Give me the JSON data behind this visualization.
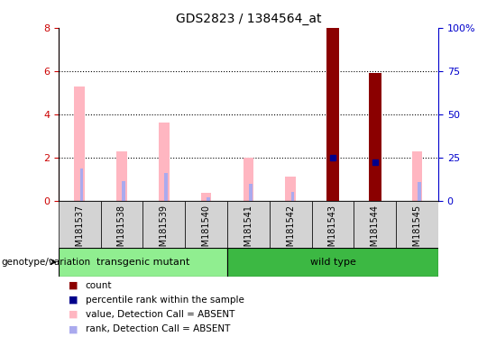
{
  "title": "GDS2823 / 1384564_at",
  "samples": [
    "GSM181537",
    "GSM181538",
    "GSM181539",
    "GSM181540",
    "GSM181541",
    "GSM181542",
    "GSM181543",
    "GSM181544",
    "GSM181545"
  ],
  "ylim_left": [
    0,
    8
  ],
  "ylim_right": [
    0,
    100
  ],
  "yticks_left": [
    0,
    2,
    4,
    6,
    8
  ],
  "yticks_right": [
    0,
    25,
    50,
    75,
    100
  ],
  "yticklabels_right": [
    "0",
    "25",
    "50",
    "75",
    "100%"
  ],
  "count_values": [
    0,
    0,
    0,
    0,
    0,
    0,
    8.0,
    5.9,
    0
  ],
  "percentile_values": [
    0,
    0,
    0,
    0,
    0,
    0,
    25.0,
    22.5,
    0
  ],
  "pink_value": [
    5.3,
    2.3,
    3.6,
    0.35,
    2.0,
    1.1,
    0,
    0,
    2.3
  ],
  "blue_rank": [
    1.5,
    0.9,
    1.3,
    0.15,
    0.8,
    0.4,
    0,
    0,
    0.85
  ],
  "count_color": "#8B0000",
  "percentile_color": "#00008B",
  "pink_color": "#FFB6C1",
  "blue_color": "#AAAAEE",
  "left_axis_color": "#CC0000",
  "right_axis_color": "#0000CC",
  "background_label": "#D3D3D3",
  "transgenic_color": "#90EE90",
  "wildtype_color": "#3CB843",
  "genotype_label": "genotype/variation",
  "legend_items": [
    [
      "#8B0000",
      "count"
    ],
    [
      "#00008B",
      "percentile rank within the sample"
    ],
    [
      "#FFB6C1",
      "value, Detection Call = ABSENT"
    ],
    [
      "#AAAAEE",
      "rank, Detection Call = ABSENT"
    ]
  ]
}
